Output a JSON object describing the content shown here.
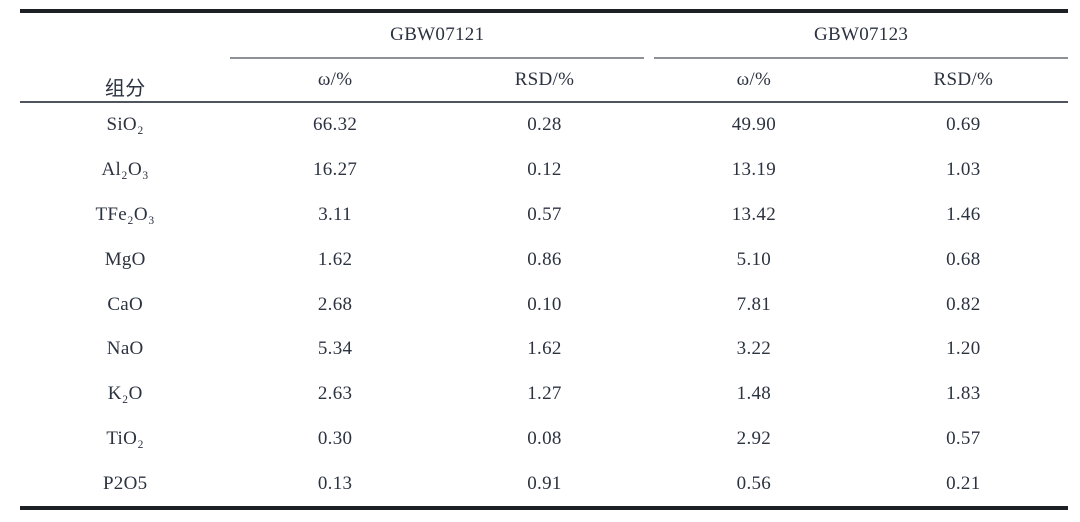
{
  "table": {
    "component_header": "组分",
    "groups": [
      {
        "label": "GBW07121",
        "sub_headers": [
          "ω/%",
          "RSD/%"
        ]
      },
      {
        "label": "GBW07123",
        "sub_headers": [
          "ω/%",
          "RSD/%"
        ]
      }
    ],
    "rows": [
      {
        "component": "SiO₂",
        "values": [
          "66.32",
          "0.28",
          "49.90",
          "0.69"
        ]
      },
      {
        "component": "Al₂O₃",
        "values": [
          "16.27",
          "0.12",
          "13.19",
          "1.03"
        ]
      },
      {
        "component": "TFe₂O₃",
        "values": [
          "3.11",
          "0.57",
          "13.42",
          "1.46"
        ]
      },
      {
        "component": "MgO",
        "values": [
          "1.62",
          "0.86",
          "5.10",
          "0.68"
        ]
      },
      {
        "component": "CaO",
        "values": [
          "2.68",
          "0.10",
          "7.81",
          "0.82"
        ]
      },
      {
        "component": "NaO",
        "values": [
          "5.34",
          "1.62",
          "3.22",
          "1.20"
        ]
      },
      {
        "component": "K₂O",
        "values": [
          "2.63",
          "1.27",
          "1.48",
          "1.83"
        ]
      },
      {
        "component": "TiO₂",
        "values": [
          "0.30",
          "0.08",
          "2.92",
          "0.57"
        ]
      },
      {
        "component": "P2O5",
        "values": [
          "0.13",
          "0.91",
          "0.56",
          "0.21"
        ]
      }
    ],
    "colors": {
      "heavy_rule": "#1c1f24",
      "medium_rule": "#4f555e",
      "spanner_rule": "#8d9097",
      "text": "#2b3240"
    }
  }
}
